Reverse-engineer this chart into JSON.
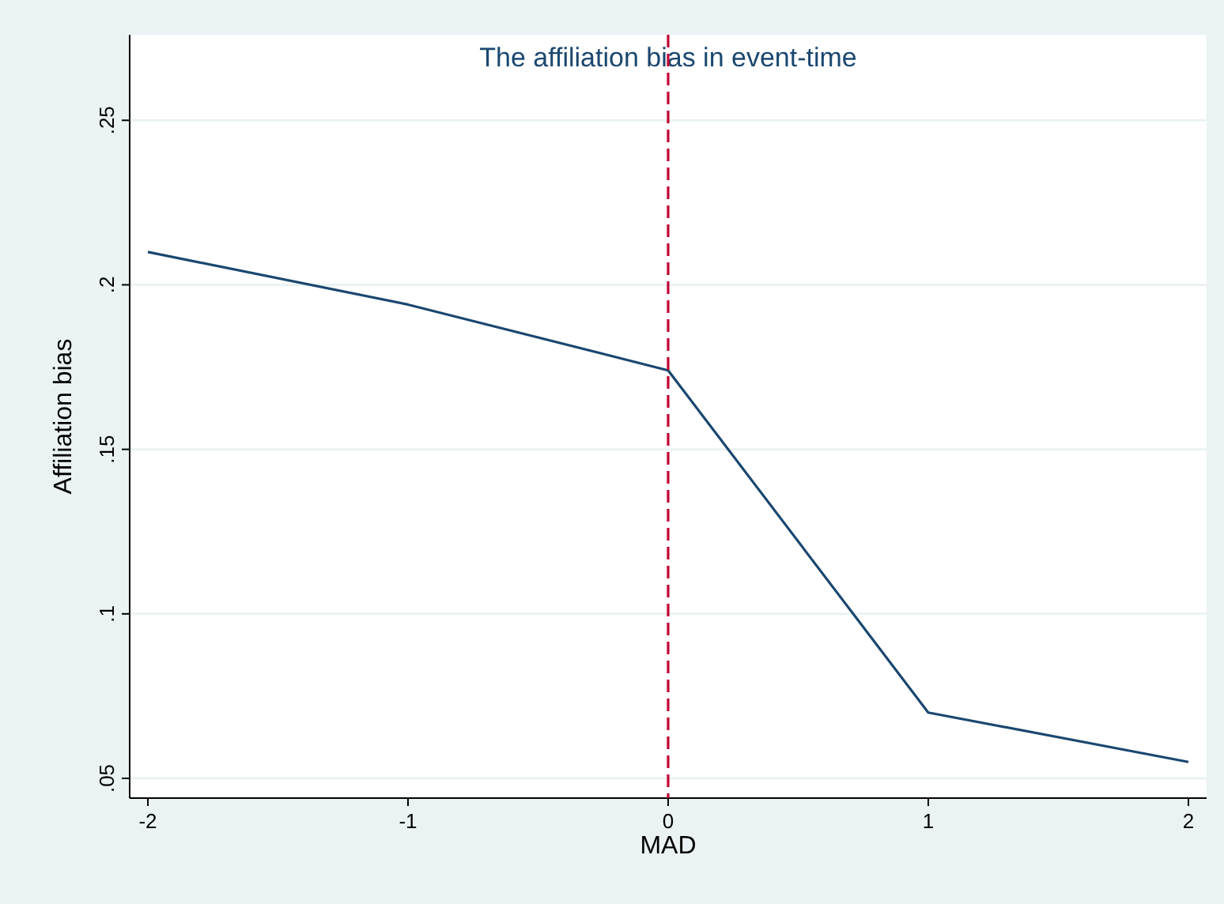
{
  "chart_data": {
    "type": "line",
    "title": "The affiliation bias in event-time",
    "xlabel": "MAD",
    "ylabel": "Affiliation bias",
    "x": [
      -2,
      -1,
      0,
      1,
      2
    ],
    "series": [
      {
        "color": "#1a476f",
        "values": [
          0.21,
          0.194,
          0.174,
          0.07,
          0.055
        ]
      }
    ],
    "xlim": [
      -2.07,
      2.07
    ],
    "xticks": [
      -2,
      -1,
      0,
      1,
      2
    ],
    "ylim": [
      0.044,
      0.276
    ],
    "yticks": [
      {
        "value": 0.05,
        "label": ".05"
      },
      {
        "value": 0.1,
        "label": ".1"
      },
      {
        "value": 0.15,
        "label": ".15"
      },
      {
        "value": 0.2,
        "label": ".2"
      },
      {
        "value": 0.25,
        "label": ".25"
      }
    ],
    "grid": "y",
    "marker": "none",
    "line_style": "solid",
    "ref_lines": [
      {
        "axis": "x",
        "value": 0,
        "color": "#c10534",
        "line_style": "dashed"
      }
    ]
  }
}
